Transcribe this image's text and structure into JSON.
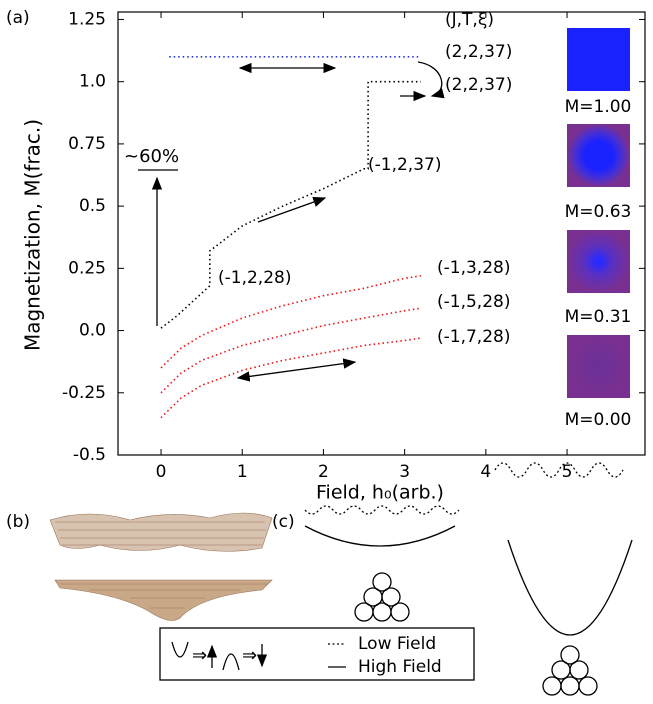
{
  "chart_data": {
    "type": "line",
    "ylabel": "Magnetization, M(frac.)",
    "xlabel": "Field, h₀(arb.)",
    "xlim": [
      -0.53,
      5.96
    ],
    "ylim": [
      -0.5,
      1.28
    ],
    "xticks": [
      0,
      1,
      2,
      3,
      4,
      5
    ],
    "yticks": [
      -0.5,
      -0.25,
      {
        "value": 0,
        "label": "0.0"
      },
      0.25,
      0.5,
      0.75,
      {
        "value": 1,
        "label": "1.0"
      },
      1.25
    ],
    "series": [
      {
        "color": "#2233ee",
        "x": [
          0.1,
          3.2
        ],
        "values": [
          1.1,
          1.1
        ]
      },
      {
        "color": "#000000",
        "x": [
          0,
          0.2,
          0.4,
          0.6,
          0.6,
          1.0,
          1.5,
          2.0,
          2.5,
          2.55,
          2.55,
          3.2
        ],
        "values": [
          0.01,
          0.06,
          0.12,
          0.18,
          0.32,
          0.42,
          0.5,
          0.57,
          0.65,
          0.65,
          1.0,
          1.0
        ]
      },
      {
        "color": "#ee1111",
        "x": [
          0,
          0.25,
          0.5,
          1,
          1.5,
          2,
          2.5,
          3,
          3.2
        ],
        "values": [
          -0.15,
          -0.07,
          -0.02,
          0.05,
          0.1,
          0.14,
          0.17,
          0.21,
          0.22
        ]
      },
      {
        "color": "#ee1111",
        "x": [
          0,
          0.25,
          0.5,
          1,
          1.5,
          2,
          2.5,
          3,
          3.2
        ],
        "values": [
          -0.25,
          -0.17,
          -0.12,
          -0.06,
          -0.02,
          0.02,
          0.05,
          0.08,
          0.09
        ]
      },
      {
        "color": "#ee1111",
        "x": [
          0,
          0.25,
          0.5,
          1,
          1.5,
          2,
          2.5,
          3,
          3.2
        ],
        "values": [
          -0.35,
          -0.27,
          -0.22,
          -0.16,
          -0.12,
          -0.09,
          -0.06,
          -0.04,
          -0.03
        ]
      }
    ],
    "annotations": [
      "(J,T,ξ)",
      "(2,2,37)",
      "(2,2,37)",
      "(-1,2,37)",
      "(-1,2,28)",
      "(-1,3,28)",
      "(-1,5,28)",
      "(-1,7,28)",
      "~60%"
    ],
    "insets": [
      "M=1.00",
      "M=0.63",
      "M=0.31",
      "M=0.00"
    ]
  },
  "figure": {
    "panel_labels": [
      "(a)",
      "(b)",
      "(c)"
    ],
    "legend": [
      "Low Field",
      "High Field"
    ]
  }
}
